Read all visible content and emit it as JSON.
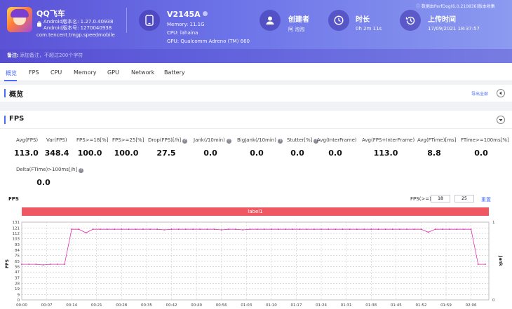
{
  "header": {
    "app_name": "QQ飞车",
    "android_version_name": "Android版本名: 1.27.0.40938",
    "android_version_code": "Android版本号: 1270040938",
    "package": "com.tencent.tmgp.speedmobile",
    "device_name": "V2145A",
    "memory": "Memory: 11.1G",
    "cpu": "CPU: lahaina",
    "gpu": "GPU: Qualcomm Adreno (TM) 660",
    "creator_title": "创建者",
    "creator_value": "阿 泡泡",
    "duration_title": "时长",
    "duration_value": "0h 2m 11s",
    "upload_title": "上传时间",
    "upload_value": "17/09/2021 18:37:57",
    "perfdog_note": "ⓘ 数据由PerfDog(6.0.210836)版本收集",
    "remark_label": "备注:",
    "remark_placeholder": "添加备注，不超过200个字符"
  },
  "tabs": [
    "概览",
    "FPS",
    "CPU",
    "Memory",
    "GPU",
    "Network",
    "Battery"
  ],
  "overview": {
    "title": "概览",
    "export": "导出全部"
  },
  "fps_section": {
    "title": "FPS",
    "metrics": [
      {
        "label": "Avg(FPS)",
        "value": "113.0",
        "help": false
      },
      {
        "label": "Var(FPS)",
        "value": "348.4",
        "help": false
      },
      {
        "label": "FPS>=18[%]",
        "value": "100.0",
        "help": false
      },
      {
        "label": "FPS>=25[%]",
        "value": "100.0",
        "help": false
      },
      {
        "label": "Drop(FPS)[/h]",
        "value": "27.5",
        "help": true
      },
      {
        "label": "Jank(/10min)",
        "value": "0.0",
        "help": true
      },
      {
        "label": "BigJank(/10min)",
        "value": "0.0",
        "help": true
      },
      {
        "label": "Stutter[%]",
        "value": "0.0",
        "help": true
      },
      {
        "label": "Avg(InterFrame)",
        "value": "0.0",
        "help": false
      },
      {
        "label": "Avg(FPS+InterFrame)",
        "value": "113.0",
        "help": false
      },
      {
        "label": "Avg(FTime)[ms]",
        "value": "8.8",
        "help": false
      },
      {
        "label": "FTime>=100ms[%]",
        "value": "0.0",
        "help": false
      },
      {
        "label": "Delta(FTime)>100ms[/h]",
        "value": "0.0",
        "help": true
      }
    ],
    "chart_title": "FPS",
    "fps_ge_label": "FPS(>=)",
    "fps_ge_1": "18",
    "fps_ge_2": "25",
    "reset": "重置",
    "band_label": "label1"
  },
  "colors": {
    "accent": "#4a6cf7",
    "series": "#e030b0",
    "band": "#ef5863"
  },
  "chart_data": {
    "type": "line",
    "title": "",
    "xlabel": "",
    "ylabel": "FPS",
    "ylabel_right": "Jank",
    "ylim": [
      0,
      131
    ],
    "yticks": [
      0,
      9,
      19,
      28,
      37,
      47,
      56,
      65,
      75,
      84,
      93,
      103,
      112,
      121,
      131
    ],
    "ylim_right": [
      0,
      1
    ],
    "yticks_right": [
      0,
      1
    ],
    "xlim": [
      0,
      131
    ],
    "xtick_labels": [
      "00:00",
      "00:07",
      "00:14",
      "00:21",
      "00:28",
      "00:35",
      "00:42",
      "00:49",
      "00:56",
      "01:03",
      "01:10",
      "01:17",
      "01:24",
      "01:31",
      "01:38",
      "01:45",
      "01:52",
      "01:59",
      "02:06"
    ],
    "grid": true,
    "series": [
      {
        "name": "",
        "x": [
          0,
          2,
          4,
          6,
          8,
          10,
          12,
          14,
          16,
          18,
          20,
          22,
          24,
          26,
          28,
          30,
          32,
          34,
          36,
          38,
          40,
          42,
          44,
          46,
          48,
          50,
          52,
          54,
          56,
          58,
          60,
          62,
          64,
          66,
          68,
          70,
          72,
          74,
          76,
          78,
          80,
          82,
          84,
          86,
          88,
          90,
          92,
          94,
          96,
          98,
          100,
          102,
          104,
          106,
          108,
          110,
          112,
          114,
          116,
          118,
          120,
          122,
          124,
          126,
          128,
          130
        ],
        "y": [
          60,
          60,
          60,
          59,
          60,
          60,
          60,
          119,
          119,
          113,
          119,
          119,
          119,
          119,
          119,
          119,
          119,
          119,
          119,
          119,
          118,
          119,
          119,
          119,
          119,
          119,
          119,
          119,
          118,
          119,
          119,
          118,
          119,
          119,
          119,
          119,
          119,
          119,
          119,
          119,
          119,
          119,
          119,
          119,
          119,
          119,
          119,
          119,
          119,
          119,
          119,
          119,
          119,
          119,
          119,
          119,
          119,
          114,
          119,
          119,
          119,
          119,
          119,
          119,
          60,
          60
        ]
      }
    ]
  }
}
